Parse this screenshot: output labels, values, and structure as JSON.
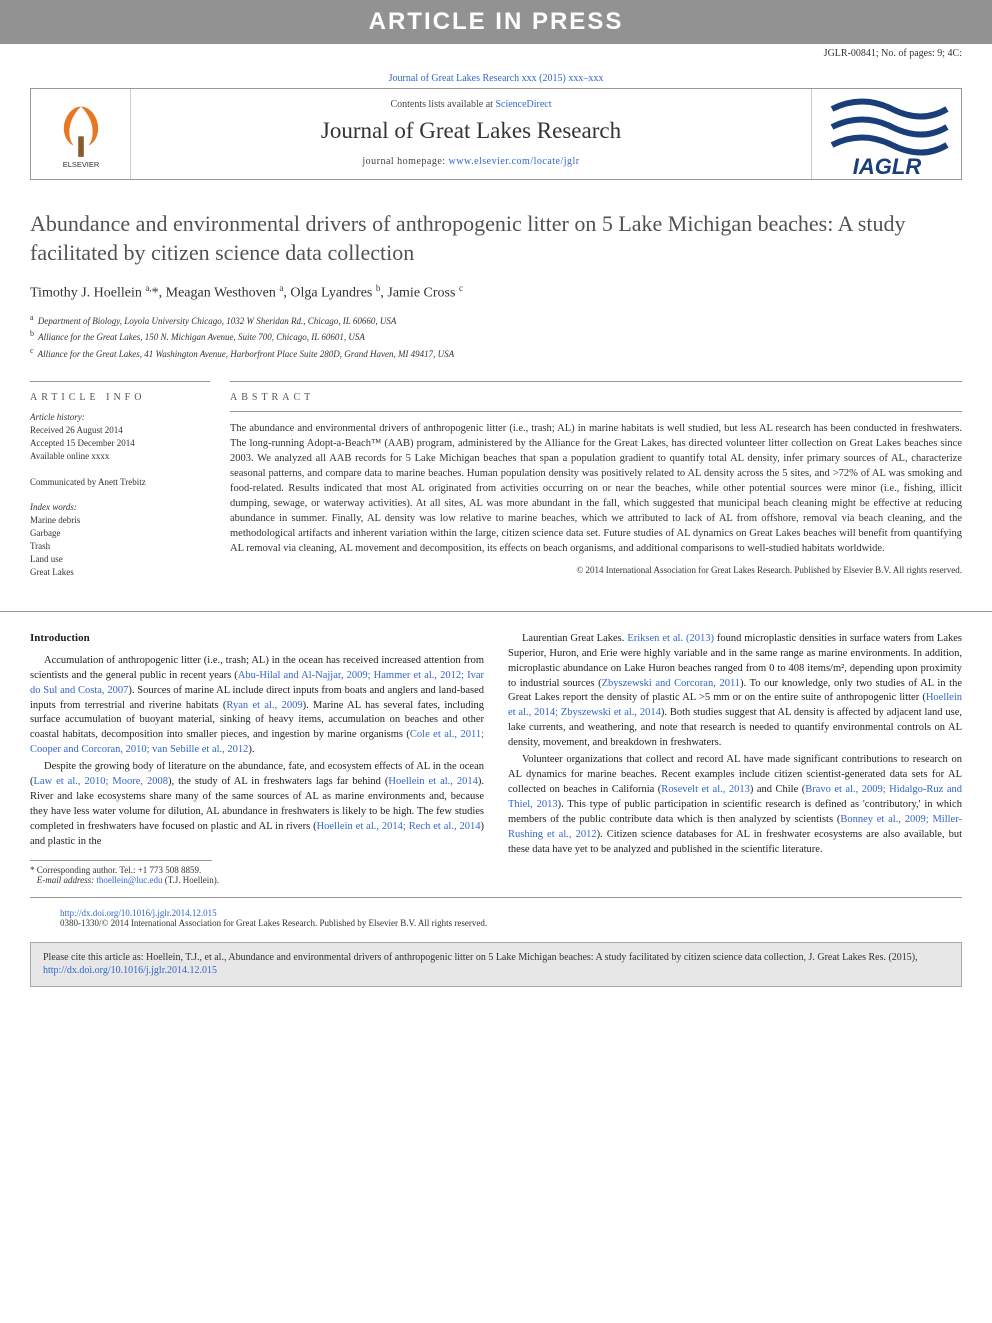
{
  "banner": "ARTICLE IN PRESS",
  "page_ref": "JGLR-00841; No. of pages: 9; 4C:",
  "journal_ref_line": "Journal of Great Lakes Research xxx (2015) xxx–xxx",
  "contents_intro": "Contents lists available at ",
  "contents_link": "ScienceDirect",
  "journal_name": "Journal of Great Lakes Research",
  "homepage_intro": "journal homepage: ",
  "homepage_url": "www.elsevier.com/locate/jglr",
  "publisher_logo_label": "ELSEVIER",
  "society_logo_label": "IAGLR",
  "article_title": "Abundance and environmental drivers of anthropogenic litter on 5 Lake Michigan beaches: A study facilitated by citizen science data collection",
  "authors_html": "Timothy J. Hoellein <sup class='author-sup'>a,</sup>*, Meagan Westhoven <sup class='author-sup'>a</sup>, Olga Lyandres <sup class='author-sup'>b</sup>, Jamie Cross <sup class='author-sup'>c</sup>",
  "affiliations": [
    {
      "sup": "a",
      "text": "Department of Biology, Loyola University Chicago, 1032 W Sheridan Rd., Chicago, IL 60660, USA"
    },
    {
      "sup": "b",
      "text": "Alliance for the Great Lakes, 150 N. Michigan Avenue, Suite 700, Chicago, IL 60601, USA"
    },
    {
      "sup": "c",
      "text": "Alliance for the Great Lakes, 41 Washington Avenue, Harborfront Place Suite 280D, Grand Haven, MI 49417, USA"
    }
  ],
  "info_head": "ARTICLE INFO",
  "abstract_head": "ABSTRACT",
  "history_label": "Article history:",
  "history_lines": [
    "Received 26 August 2014",
    "Accepted 15 December 2014",
    "Available online xxxx"
  ],
  "communicated": "Communicated by Anett Trebitz",
  "index_label": "Index words:",
  "index_words": [
    "Marine debris",
    "Garbage",
    "Trash",
    "Land use",
    "Great Lakes"
  ],
  "abstract_text": "The abundance and environmental drivers of anthropogenic litter (i.e., trash; AL) in marine habitats is well studied, but less AL research has been conducted in freshwaters. The long-running Adopt-a-Beach™ (AAB) program, administered by the Alliance for the Great Lakes, has directed volunteer litter collection on Great Lakes beaches since 2003. We analyzed all AAB records for 5 Lake Michigan beaches that span a population gradient to quantify total AL density, infer primary sources of AL, characterize seasonal patterns, and compare data to marine beaches. Human population density was positively related to AL density across the 5 sites, and >72% of AL was smoking and food-related. Results indicated that most AL originated from activities occurring on or near the beaches, while other potential sources were minor (i.e., fishing, illicit dumping, sewage, or waterway activities). At all sites, AL was more abundant in the fall, which suggested that municipal beach cleaning might be effective at reducing abundance in summer. Finally, AL density was low relative to marine beaches, which we attributed to lack of AL from offshore, removal via beach cleaning, and the methodological artifacts and inherent variation within the large, citizen science data set. Future studies of AL dynamics on Great Lakes beaches will benefit from quantifying AL removal via cleaning, AL movement and decomposition, its effects on beach organisms, and additional comparisons to well-studied habitats worldwide.",
  "copyright_line": "© 2014 International Association for Great Lakes Research. Published by Elsevier B.V. All rights reserved.",
  "intro_heading": "Introduction",
  "left_paragraphs": [
    "Accumulation of anthropogenic litter (i.e., trash; AL) in the ocean has received increased attention from scientists and the general public in recent years (<a>Abu-Hilal and Al-Najjar, 2009; Hammer et al., 2012; Ivar do Sul and Costa, 2007</a>). Sources of marine AL include direct inputs from boats and anglers and land-based inputs from terrestrial and riverine habitats (<a>Ryan et al., 2009</a>). Marine AL has several fates, including surface accumulation of buoyant material, sinking of heavy items, accumulation on beaches and other coastal habitats, decomposition into smaller pieces, and ingestion by marine organisms (<a>Cole et al., 2011; Cooper and Corcoran, 2010; van Sebille et al., 2012</a>).",
    "Despite the growing body of literature on the abundance, fate, and ecosystem effects of AL in the ocean (<a>Law et al., 2010; Moore, 2008</a>), the study of AL in freshwaters lags far behind (<a>Hoellein et al., 2014</a>). River and lake ecosystems share many of the same sources of AL as marine environments and, because they have less water volume for dilution, AL abundance in freshwaters is likely to be high. The few studies completed in freshwaters have focused on plastic and AL in rivers (<a>Hoellein et al., 2014; Rech et al., 2014</a>) and plastic in the"
  ],
  "right_paragraphs": [
    "Laurentian Great Lakes. <a>Eriksen et al. (2013)</a> found microplastic densities in surface waters from Lakes Superior, Huron, and Erie were highly variable and in the same range as marine environments. In addition, microplastic abundance on Lake Huron beaches ranged from 0 to 408 items/m², depending upon proximity to industrial sources (<a>Zbyszewski and Corcoran, 2011</a>). To our knowledge, only two studies of AL in the Great Lakes report the density of plastic AL >5 mm or on the entire suite of anthropogenic litter (<a>Hoellein et al., 2014; Zbyszewski et al., 2014</a>). Both studies suggest that AL density is affected by adjacent land use, lake currents, and weathering, and note that research is needed to quantify environmental controls on AL density, movement, and breakdown in freshwaters.",
    "Volunteer organizations that collect and record AL have made significant contributions to research on AL dynamics for marine beaches. Recent examples include citizen scientist-generated data sets for AL collected on beaches in California (<a>Rosevelt et al., 2013</a>) and Chile (<a>Bravo et al., 2009; Hidalgo-Ruz and Thiel, 2013</a>). This type of public participation in scientific research is defined as 'contributory,' in which members of the public contribute data which is then analyzed by scientists (<a>Bonney et al., 2009; Miller-Rushing et al., 2012</a>). Citizen science databases for AL in freshwater ecosystems are also available, but these data have yet to be analyzed and published in the scientific literature."
  ],
  "corr_star": "*",
  "corr_text": "Corresponding author. Tel.: +1 773 508 8859.",
  "corr_email_label": "E-mail address:",
  "corr_email": "thoellein@luc.edu",
  "corr_email_suffix": "(T.J. Hoellein).",
  "doi_link": "http://dx.doi.org/10.1016/j.jglr.2014.12.015",
  "doi_copyright": "0380-1330/© 2014 International Association for Great Lakes Research. Published by Elsevier B.V. All rights reserved.",
  "cite_text": "Please cite this article as: Hoellein, T.J., et al., Abundance and environmental drivers of anthropogenic litter on 5 Lake Michigan beaches: A study facilitated by citizen science data collection, J. Great Lakes Res. (2015), ",
  "cite_link": "http://dx.doi.org/10.1016/j.jglr.2014.12.015",
  "colors": {
    "banner_bg": "#929292",
    "banner_fg": "#ffffff",
    "link": "#3366cc",
    "rule": "#999999",
    "citebox_bg": "#e7e7e7",
    "iaglr_blue": "#1a3e7a"
  }
}
